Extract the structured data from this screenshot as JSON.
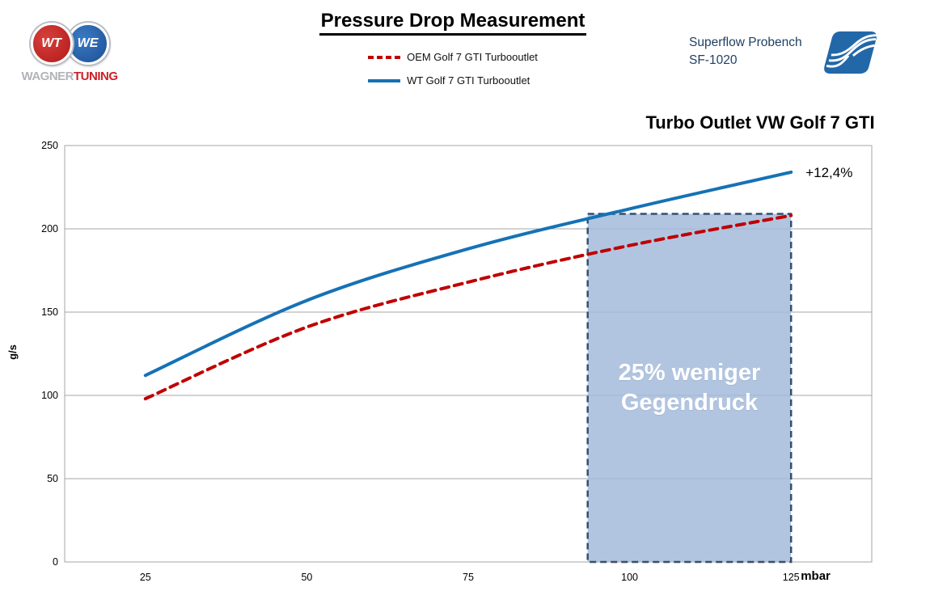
{
  "page": {
    "title": "Pressure Drop Measurement",
    "brand": {
      "monogram_left": "WT",
      "monogram_right": "WE",
      "logo_text_left": "WAGNER",
      "logo_text_right": "TUNING"
    },
    "bench": {
      "line1": "Superflow Probench",
      "line2": "SF-1020",
      "text_color": "#1F4064",
      "logo_color": "#2268A8"
    }
  },
  "chart_data": {
    "type": "line",
    "title": "Turbo Outlet VW Golf 7 GTI",
    "x": [
      25,
      50,
      75,
      100,
      125
    ],
    "xlabel": "mbar",
    "ylabel": "g/s",
    "ylim": [
      0,
      250
    ],
    "yticks": [
      0,
      50,
      100,
      150,
      200,
      250
    ],
    "grid": true,
    "grid_color": "#A6A6A6",
    "legend_position": "top-center",
    "series": [
      {
        "name": "OEM Golf 7 GTI Turbooutlet",
        "color": "#C00000",
        "dash": true,
        "values": [
          98,
          141,
          168,
          190,
          208
        ]
      },
      {
        "name": "WT Golf 7 GTI Turbooutlet",
        "color": "#1572B5",
        "dash": false,
        "values": [
          112,
          157,
          188,
          212,
          234
        ]
      }
    ],
    "annotations": {
      "gain_label": "+12,4%",
      "region": {
        "label_line1": "25% weniger",
        "label_line2": "Gegendruck",
        "x_start": 93.5,
        "x_end": 125,
        "y_top": 209,
        "y_bottom": 0,
        "fill": "#A3BBDC",
        "border": "#34506E"
      }
    }
  }
}
